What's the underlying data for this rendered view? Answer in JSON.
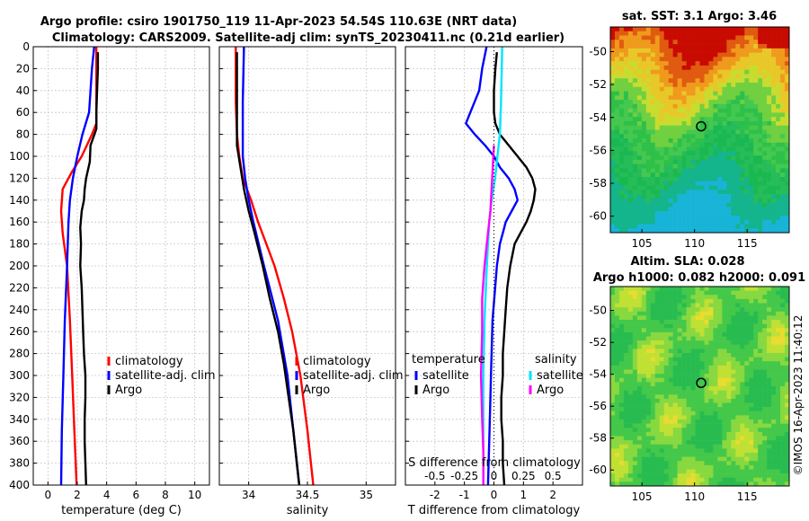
{
  "title_line1": "Argo profile: csiro 1901750_119 11-Apr-2023 54.54S 110.63E (NRT data)",
  "title_line2": "Climatology: CARS2009. Satellite-adj clim: synTS_20230411.nc (0.21d earlier)",
  "depth_ticks": [
    0,
    20,
    40,
    60,
    80,
    100,
    120,
    140,
    160,
    180,
    200,
    220,
    240,
    260,
    280,
    300,
    320,
    340,
    360,
    380,
    400
  ],
  "colors": {
    "climatology": "#ff0000",
    "satellite": "#0000ff",
    "argo": "#000000",
    "sat_s": "#00e5ff",
    "argo_s": "#ff00ff"
  },
  "chart_data": [
    {
      "type": "line",
      "name": "temperature",
      "xlabel": "temperature (deg C)",
      "ylabel": "",
      "xlim": [
        -1,
        11
      ],
      "ylim": [
        400,
        0
      ],
      "xticks": [
        0,
        2,
        4,
        6,
        8,
        10
      ],
      "xtick_labels": [
        "0",
        "2",
        "4",
        "6",
        "8",
        "10"
      ],
      "legend": [
        "climatology",
        "satellite-adj. clim",
        "Argo"
      ],
      "series": [
        {
          "name": "climatology",
          "color": "#ff0000",
          "depth": [
            0,
            50,
            70,
            80,
            100,
            115,
            130,
            150,
            170,
            200,
            250,
            300,
            350,
            400
          ],
          "values": [
            3.3,
            3.3,
            3.3,
            3.0,
            2.3,
            1.6,
            1.0,
            0.9,
            1.0,
            1.3,
            1.5,
            1.65,
            1.8,
            1.95
          ]
        },
        {
          "name": "satellite-adj. clim",
          "color": "#0000ff",
          "depth": [
            0,
            20,
            40,
            60,
            80,
            100,
            120,
            140,
            160,
            200,
            250,
            300,
            350,
            400
          ],
          "values": [
            3.15,
            3.0,
            2.9,
            2.8,
            2.35,
            2.0,
            1.7,
            1.5,
            1.4,
            1.3,
            1.15,
            1.05,
            0.95,
            0.9
          ]
        },
        {
          "name": "Argo",
          "color": "#000000",
          "depth": [
            5,
            20,
            40,
            60,
            75,
            90,
            105,
            120,
            130,
            140,
            150,
            165,
            180,
            200,
            220,
            240,
            260,
            280,
            300,
            320,
            340,
            360,
            380,
            400
          ],
          "values": [
            3.4,
            3.4,
            3.35,
            3.3,
            3.3,
            2.9,
            2.85,
            2.6,
            2.5,
            2.45,
            2.3,
            2.2,
            2.25,
            2.2,
            2.3,
            2.35,
            2.4,
            2.45,
            2.55,
            2.55,
            2.5,
            2.5,
            2.55,
            2.6
          ]
        }
      ]
    },
    {
      "type": "line",
      "name": "salinity",
      "xlabel": "salinity",
      "ylabel": "",
      "xlim": [
        33.75,
        35.25
      ],
      "ylim": [
        400,
        0
      ],
      "xticks": [
        34,
        34.5,
        35
      ],
      "xtick_labels": [
        "34",
        "34.5",
        "35"
      ],
      "legend": [
        "climatology",
        "satellite-adj. clim",
        "Argo"
      ],
      "series": [
        {
          "name": "climatology",
          "color": "#ff0000",
          "depth": [
            0,
            50,
            80,
            100,
            120,
            140,
            160,
            180,
            200,
            230,
            260,
            300,
            350,
            400
          ],
          "values": [
            33.89,
            33.89,
            33.9,
            33.92,
            33.95,
            34.02,
            34.08,
            34.15,
            34.22,
            34.3,
            34.37,
            34.44,
            34.5,
            34.55
          ]
        },
        {
          "name": "satellite-adj. clim",
          "color": "#0000ff",
          "depth": [
            0,
            50,
            80,
            100,
            120,
            140,
            160,
            200,
            250,
            300,
            350,
            400
          ],
          "values": [
            33.96,
            33.95,
            33.95,
            33.95,
            33.97,
            34.0,
            34.04,
            34.13,
            34.25,
            34.33,
            34.38,
            34.43
          ]
        },
        {
          "name": "Argo",
          "color": "#000000",
          "depth": [
            5,
            30,
            60,
            90,
            110,
            130,
            150,
            170,
            200,
            230,
            260,
            290,
            320,
            350,
            380,
            400
          ],
          "values": [
            33.9,
            33.9,
            33.9,
            33.9,
            33.93,
            33.96,
            34.0,
            34.05,
            34.12,
            34.18,
            34.25,
            34.3,
            34.34,
            34.38,
            34.41,
            34.43
          ]
        }
      ]
    },
    {
      "type": "line",
      "name": "difference from climatology",
      "xlabel": "T difference from climatology",
      "xlabel_top": "S difference from climatology",
      "xlim": [
        -3,
        3
      ],
      "ylim": [
        400,
        0
      ],
      "xticks": [
        -2,
        -1,
        0,
        1,
        2
      ],
      "xtick_labels": [
        "-2",
        "-1",
        "0",
        "1",
        "2"
      ],
      "s_ticks": [
        -0.5,
        -0.25,
        0,
        0.25,
        0.5
      ],
      "s_tick_labels": [
        "-0.5",
        "-0.25",
        "0",
        "0.25",
        "0.5"
      ],
      "s_scale": 4,
      "legend_temperature_title": "temperature",
      "legend_salinity_title": "salinity",
      "legend_temperature": [
        "satellite",
        "Argo"
      ],
      "legend_salinity": [
        "satellite",
        "Argo"
      ],
      "series": [
        {
          "name": "T satellite",
          "color": "#0000ff",
          "depth": [
            0,
            20,
            40,
            60,
            70,
            80,
            90,
            100,
            110,
            120,
            130,
            140,
            150,
            160,
            170,
            180,
            200,
            250,
            300,
            350,
            400
          ],
          "values": [
            -0.25,
            -0.4,
            -0.5,
            -0.8,
            -0.95,
            -0.65,
            -0.3,
            0.0,
            0.2,
            0.5,
            0.7,
            0.8,
            0.6,
            0.4,
            0.3,
            0.2,
            0.1,
            -0.05,
            -0.1,
            -0.15,
            -0.2
          ]
        },
        {
          "name": "T Argo",
          "color": "#000000",
          "depth": [
            5,
            20,
            40,
            60,
            70,
            80,
            90,
            100,
            110,
            120,
            130,
            140,
            150,
            160,
            170,
            180,
            200,
            220,
            240,
            260,
            280,
            300,
            320,
            340,
            360,
            380,
            400
          ],
          "values": [
            0.1,
            0.05,
            0.0,
            0.0,
            0.05,
            0.2,
            0.5,
            0.8,
            1.1,
            1.3,
            1.4,
            1.35,
            1.25,
            1.1,
            0.9,
            0.7,
            0.55,
            0.45,
            0.4,
            0.35,
            0.3,
            0.3,
            0.25,
            0.25,
            0.3,
            0.3,
            0.35
          ]
        },
        {
          "name": "S satellite",
          "color": "#00e5ff",
          "depth": [
            0,
            50,
            80,
            100,
            120,
            140,
            160,
            180,
            200,
            250,
            300,
            350,
            400
          ],
          "values": [
            0.07,
            0.06,
            0.05,
            0.03,
            0.01,
            -0.02,
            -0.04,
            -0.05,
            -0.06,
            -0.08,
            -0.09,
            -0.09,
            -0.09
          ]
        },
        {
          "name": "S Argo",
          "color": "#ff00ff",
          "depth": [
            90,
            110,
            130,
            150,
            170,
            200,
            230,
            260,
            300,
            340,
            370,
            400
          ],
          "values": [
            0.0,
            -0.01,
            -0.02,
            -0.03,
            -0.05,
            -0.08,
            -0.1,
            -0.1,
            -0.11,
            -0.1,
            -0.09,
            -0.09
          ]
        }
      ]
    },
    {
      "type": "heatmap",
      "name": "satellite SST map",
      "title": "sat. SST: 3.1 Argo: 3.46",
      "xlim": [
        102,
        119
      ],
      "ylim": [
        -61,
        -48.5
      ],
      "xticks": [
        105,
        110,
        115
      ],
      "yticks": [
        -50,
        -52,
        -54,
        -56,
        -58,
        -60
      ],
      "argo_position": [
        110.63,
        -54.54
      ]
    },
    {
      "type": "heatmap",
      "name": "altimetry SLA map",
      "title_line1": "Altim. SLA: 0.028",
      "title_line2": "Argo h1000: 0.082 h2000: 0.091",
      "xlim": [
        102,
        119
      ],
      "ylim": [
        -61,
        -48.5
      ],
      "xticks": [
        105,
        110,
        115
      ],
      "yticks": [
        -50,
        -52,
        -54,
        -56,
        -58,
        -60
      ],
      "argo_position": [
        110.63,
        -54.54
      ]
    }
  ],
  "watermark": "©IMOS 16-Apr-2023 11:40:12"
}
